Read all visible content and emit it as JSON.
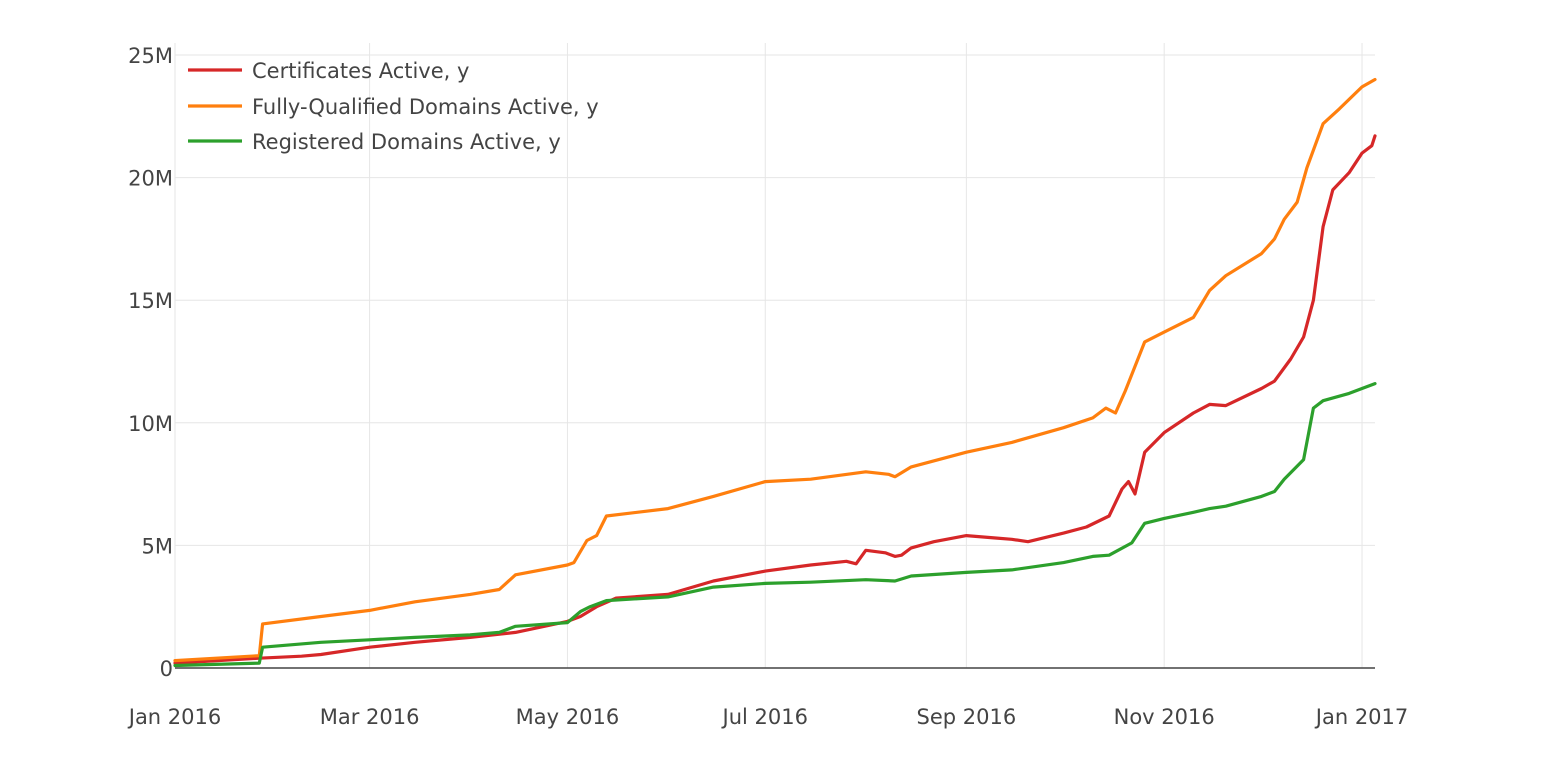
{
  "chart_data": {
    "type": "line",
    "title": "",
    "xlabel": "",
    "ylabel": "",
    "x_range": [
      "2016-01-01",
      "2017-01-05"
    ],
    "ylim": [
      0,
      25000000
    ],
    "grid": true,
    "legend_placement": "top-left",
    "x_ticks": [
      {
        "date": "2016-01-01",
        "label": "Jan 2016"
      },
      {
        "date": "2016-03-01",
        "label": "Mar 2016"
      },
      {
        "date": "2016-05-01",
        "label": "May 2016"
      },
      {
        "date": "2016-07-01",
        "label": "Jul 2016"
      },
      {
        "date": "2016-09-01",
        "label": "Sep 2016"
      },
      {
        "date": "2016-11-01",
        "label": "Nov 2016"
      },
      {
        "date": "2017-01-01",
        "label": "Jan 2017"
      }
    ],
    "y_ticks": [
      {
        "value": 0,
        "label": "0"
      },
      {
        "value": 5000000,
        "label": "5M"
      },
      {
        "value": 10000000,
        "label": "10M"
      },
      {
        "value": 15000000,
        "label": "15M"
      },
      {
        "value": 20000000,
        "label": "20M"
      },
      {
        "value": 25000000,
        "label": "25M"
      }
    ],
    "series": [
      {
        "name": "Certificates Active, y",
        "color": "#d62728",
        "points": [
          [
            "2016-01-01",
            200000
          ],
          [
            "2016-01-27",
            400000
          ],
          [
            "2016-02-09",
            480000
          ],
          [
            "2016-02-15",
            550000
          ],
          [
            "2016-03-01",
            850000
          ],
          [
            "2016-03-15",
            1050000
          ],
          [
            "2016-04-01",
            1250000
          ],
          [
            "2016-04-15",
            1450000
          ],
          [
            "2016-05-01",
            1900000
          ],
          [
            "2016-05-05",
            2100000
          ],
          [
            "2016-05-10",
            2500000
          ],
          [
            "2016-05-16",
            2850000
          ],
          [
            "2016-06-01",
            3000000
          ],
          [
            "2016-06-15",
            3550000
          ],
          [
            "2016-07-01",
            3950000
          ],
          [
            "2016-07-15",
            4200000
          ],
          [
            "2016-07-26",
            4350000
          ],
          [
            "2016-07-29",
            4250000
          ],
          [
            "2016-08-01",
            4800000
          ],
          [
            "2016-08-07",
            4700000
          ],
          [
            "2016-08-10",
            4550000
          ],
          [
            "2016-08-12",
            4600000
          ],
          [
            "2016-08-15",
            4900000
          ],
          [
            "2016-08-22",
            5150000
          ],
          [
            "2016-09-01",
            5400000
          ],
          [
            "2016-09-10",
            5300000
          ],
          [
            "2016-09-15",
            5250000
          ],
          [
            "2016-09-20",
            5150000
          ],
          [
            "2016-10-01",
            5500000
          ],
          [
            "2016-10-08",
            5750000
          ],
          [
            "2016-10-15",
            6200000
          ],
          [
            "2016-10-19",
            7300000
          ],
          [
            "2016-10-21",
            7600000
          ],
          [
            "2016-10-23",
            7100000
          ],
          [
            "2016-10-26",
            8800000
          ],
          [
            "2016-11-01",
            9600000
          ],
          [
            "2016-11-10",
            10400000
          ],
          [
            "2016-11-15",
            10750000
          ],
          [
            "2016-11-20",
            10700000
          ],
          [
            "2016-12-01",
            11400000
          ],
          [
            "2016-12-05",
            11700000
          ],
          [
            "2016-12-10",
            12600000
          ],
          [
            "2016-12-14",
            13500000
          ],
          [
            "2016-12-17",
            15000000
          ],
          [
            "2016-12-20",
            18000000
          ],
          [
            "2016-12-23",
            19500000
          ],
          [
            "2016-12-28",
            20200000
          ],
          [
            "2017-01-01",
            21000000
          ],
          [
            "2017-01-04",
            21300000
          ],
          [
            "2017-01-05",
            21700000
          ]
        ]
      },
      {
        "name": "Fully-Qualified Domains Active, y",
        "color": "#ff7f0e",
        "points": [
          [
            "2016-01-01",
            300000
          ],
          [
            "2016-01-27",
            500000
          ],
          [
            "2016-01-28",
            1800000
          ],
          [
            "2016-02-15",
            2100000
          ],
          [
            "2016-03-01",
            2350000
          ],
          [
            "2016-03-15",
            2700000
          ],
          [
            "2016-04-01",
            3000000
          ],
          [
            "2016-04-10",
            3200000
          ],
          [
            "2016-04-15",
            3800000
          ],
          [
            "2016-05-01",
            4200000
          ],
          [
            "2016-05-03",
            4300000
          ],
          [
            "2016-05-07",
            5200000
          ],
          [
            "2016-05-10",
            5400000
          ],
          [
            "2016-05-13",
            6200000
          ],
          [
            "2016-06-01",
            6500000
          ],
          [
            "2016-06-15",
            7000000
          ],
          [
            "2016-07-01",
            7600000
          ],
          [
            "2016-07-15",
            7700000
          ],
          [
            "2016-08-01",
            8000000
          ],
          [
            "2016-08-08",
            7900000
          ],
          [
            "2016-08-10",
            7800000
          ],
          [
            "2016-08-15",
            8200000
          ],
          [
            "2016-09-01",
            8800000
          ],
          [
            "2016-09-15",
            9200000
          ],
          [
            "2016-10-01",
            9800000
          ],
          [
            "2016-10-10",
            10200000
          ],
          [
            "2016-10-14",
            10600000
          ],
          [
            "2016-10-17",
            10400000
          ],
          [
            "2016-10-20",
            11300000
          ],
          [
            "2016-10-26",
            13300000
          ],
          [
            "2016-11-01",
            13700000
          ],
          [
            "2016-11-10",
            14300000
          ],
          [
            "2016-11-15",
            15400000
          ],
          [
            "2016-11-20",
            16000000
          ],
          [
            "2016-12-01",
            16900000
          ],
          [
            "2016-12-05",
            17500000
          ],
          [
            "2016-12-08",
            18300000
          ],
          [
            "2016-12-12",
            19000000
          ],
          [
            "2016-12-15",
            20400000
          ],
          [
            "2016-12-20",
            22200000
          ],
          [
            "2016-12-25",
            22800000
          ],
          [
            "2017-01-01",
            23700000
          ],
          [
            "2017-01-05",
            24000000
          ]
        ]
      },
      {
        "name": "Registered Domains Active, y",
        "color": "#2ca02c",
        "points": [
          [
            "2016-01-01",
            100000
          ],
          [
            "2016-01-27",
            200000
          ],
          [
            "2016-01-28",
            850000
          ],
          [
            "2016-02-15",
            1050000
          ],
          [
            "2016-03-01",
            1150000
          ],
          [
            "2016-03-15",
            1250000
          ],
          [
            "2016-04-01",
            1350000
          ],
          [
            "2016-04-10",
            1450000
          ],
          [
            "2016-04-15",
            1700000
          ],
          [
            "2016-05-01",
            1850000
          ],
          [
            "2016-05-05",
            2300000
          ],
          [
            "2016-05-08",
            2500000
          ],
          [
            "2016-05-13",
            2750000
          ],
          [
            "2016-06-01",
            2900000
          ],
          [
            "2016-06-15",
            3300000
          ],
          [
            "2016-07-01",
            3450000
          ],
          [
            "2016-07-15",
            3500000
          ],
          [
            "2016-08-01",
            3600000
          ],
          [
            "2016-08-10",
            3550000
          ],
          [
            "2016-08-15",
            3750000
          ],
          [
            "2016-09-01",
            3900000
          ],
          [
            "2016-09-15",
            4000000
          ],
          [
            "2016-10-01",
            4300000
          ],
          [
            "2016-10-10",
            4550000
          ],
          [
            "2016-10-15",
            4600000
          ],
          [
            "2016-10-22",
            5100000
          ],
          [
            "2016-10-26",
            5900000
          ],
          [
            "2016-11-01",
            6100000
          ],
          [
            "2016-11-10",
            6350000
          ],
          [
            "2016-11-15",
            6500000
          ],
          [
            "2016-11-20",
            6600000
          ],
          [
            "2016-12-01",
            7000000
          ],
          [
            "2016-12-05",
            7200000
          ],
          [
            "2016-12-08",
            7700000
          ],
          [
            "2016-12-14",
            8500000
          ],
          [
            "2016-12-17",
            10600000
          ],
          [
            "2016-12-20",
            10900000
          ],
          [
            "2016-12-28",
            11200000
          ],
          [
            "2017-01-01",
            11400000
          ],
          [
            "2017-01-05",
            11600000
          ]
        ]
      }
    ]
  }
}
